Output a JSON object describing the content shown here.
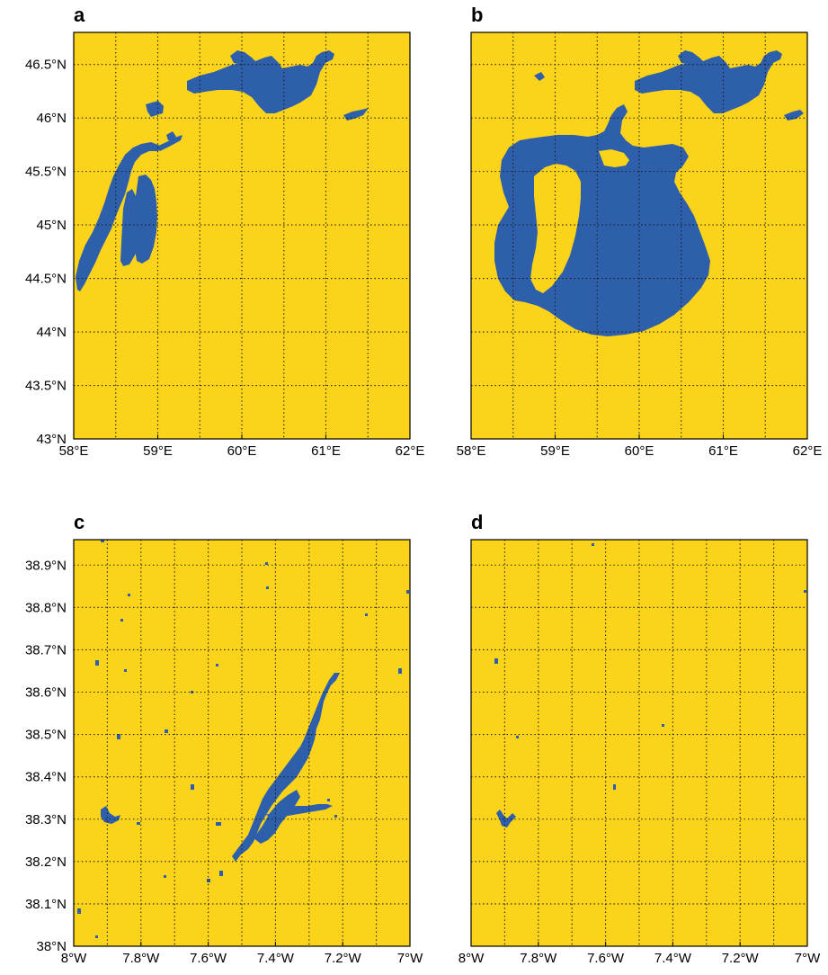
{
  "colors": {
    "land": "#fbd31b",
    "water": "#2e5fab",
    "grid": "#1a1a1a",
    "frame": "#000000"
  },
  "panels": [
    {
      "label": "a",
      "x_ticks": [
        "58°E",
        "59°E",
        "60°E",
        "61°E",
        "62°E"
      ],
      "y_ticks": [
        "43°N",
        "43.5°N",
        "44°N",
        "44.5°N",
        "45°N",
        "45.5°N",
        "46°N",
        "46.5°N"
      ]
    },
    {
      "label": "b",
      "x_ticks": [
        "58°E",
        "59°E",
        "60°E",
        "61°E",
        "62°E"
      ],
      "y_ticks": []
    },
    {
      "label": "c",
      "x_ticks": [
        "8°W",
        "7.8°W",
        "7.6°W",
        "7.4°W",
        "7.2°W",
        "7°W"
      ],
      "y_ticks": [
        "38°N",
        "38.1°N",
        "38.2°N",
        "38.3°N",
        "38.4°N",
        "38.5°N",
        "38.6°N",
        "38.7°N",
        "38.8°N",
        "38.9°N"
      ]
    },
    {
      "label": "d",
      "x_ticks": [
        "8°W",
        "7.8°W",
        "7.6°W",
        "7.4°W",
        "7.2°W",
        "7°W"
      ],
      "y_ticks": []
    }
  ]
}
